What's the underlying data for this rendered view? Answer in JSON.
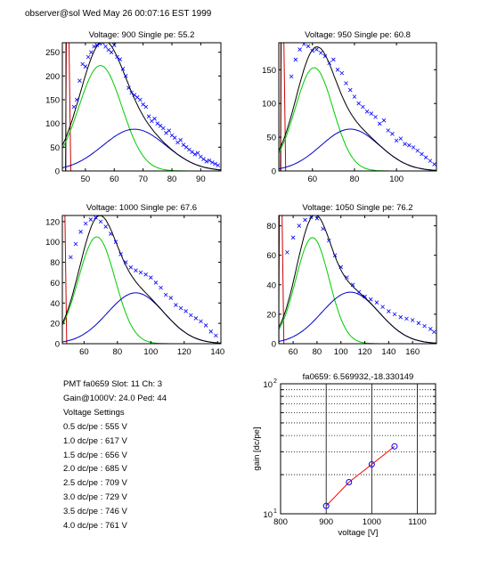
{
  "header": {
    "text": "observer@sol  Wed May 26 00:07:16 EST 1999"
  },
  "colors": {
    "data": "#0000ff",
    "fit_total": "#000000",
    "fit_single": "#00cc00",
    "fit_double": "#0000cc",
    "pedestal": "#cc0000",
    "gain_line": "#ff0000",
    "gain_marker": "#0000ff"
  },
  "info": {
    "pmt_line": "PMT fa0659 Slot: 11 Ch: 3",
    "gain_line": "Gain@1000V: 24.0 Ped: 44",
    "settings_title": "Voltage Settings",
    "settings": [
      "0.5 dc/pe : 555 V",
      "1.0 dc/pe : 617 V",
      "1.5 dc/pe : 656 V",
      "2.0 dc/pe : 685 V",
      "2.5 dc/pe : 709 V",
      "3.0 dc/pe : 729 V",
      "3.5 dc/pe : 746 V",
      "4.0 dc/pe : 761 V"
    ]
  },
  "chart_data": [
    {
      "type": "scatter",
      "title": "Voltage: 900 Single pe: 55.2",
      "xlim": [
        42,
        97
      ],
      "ylim": [
        0,
        270
      ],
      "xticks": [
        50,
        60,
        70,
        80,
        90
      ],
      "yticks": [
        0,
        50,
        100,
        150,
        200,
        250
      ],
      "pedestal": 44,
      "single_pe": 55.2,
      "fit_single": {
        "amp": 222,
        "mean": 55.2,
        "sigma": 7.5
      },
      "fit_double": {
        "amp": 88,
        "mean": 67,
        "sigma": 11
      },
      "x": [
        46,
        47,
        48,
        49,
        50,
        51,
        52,
        53,
        54,
        55,
        56,
        57,
        58,
        59,
        60,
        61,
        62,
        63,
        64,
        65,
        66,
        67,
        68,
        69,
        70,
        71,
        72,
        73,
        74,
        75,
        76,
        77,
        78,
        79,
        80,
        81,
        82,
        83,
        84,
        85,
        86,
        87,
        88,
        89,
        90,
        91,
        92,
        93,
        94,
        95,
        96
      ],
      "y": [
        135,
        150,
        190,
        225,
        220,
        240,
        250,
        262,
        265,
        268,
        270,
        262,
        255,
        250,
        265,
        240,
        235,
        215,
        200,
        175,
        165,
        160,
        155,
        150,
        140,
        135,
        115,
        105,
        110,
        100,
        95,
        90,
        80,
        85,
        75,
        70,
        60,
        65,
        55,
        50,
        45,
        40,
        35,
        38,
        30,
        25,
        20,
        22,
        18,
        15,
        12
      ]
    },
    {
      "type": "scatter",
      "title": "Voltage: 950 Single pe: 60.8",
      "xlim": [
        44,
        119
      ],
      "ylim": [
        0,
        190
      ],
      "xticks": [
        60,
        80,
        100
      ],
      "yticks": [
        0,
        50,
        100,
        150
      ],
      "pedestal": 46,
      "single_pe": 60.8,
      "fit_single": {
        "amp": 153,
        "mean": 60.8,
        "sigma": 9
      },
      "fit_double": {
        "amp": 62,
        "mean": 78,
        "sigma": 14
      },
      "x": [
        50,
        52,
        54,
        56,
        58,
        60,
        62,
        64,
        66,
        68,
        70,
        72,
        74,
        76,
        78,
        80,
        82,
        84,
        86,
        88,
        90,
        92,
        94,
        96,
        98,
        100,
        102,
        104,
        106,
        108,
        110,
        112,
        114,
        116,
        118
      ],
      "y": [
        140,
        165,
        180,
        188,
        185,
        178,
        180,
        175,
        170,
        160,
        165,
        150,
        145,
        130,
        120,
        110,
        100,
        95,
        88,
        85,
        80,
        70,
        75,
        60,
        55,
        45,
        48,
        40,
        38,
        35,
        30,
        25,
        20,
        15,
        10
      ]
    },
    {
      "type": "scatter",
      "title": "Voltage: 1000 Single pe: 67.6",
      "xlim": [
        47,
        142
      ],
      "ylim": [
        0,
        126
      ],
      "xticks": [
        60,
        80,
        100,
        120,
        140
      ],
      "yticks": [
        0,
        20,
        40,
        60,
        80,
        100,
        120
      ],
      "pedestal": 48,
      "single_pe": 67.6,
      "fit_single": {
        "amp": 105,
        "mean": 67.6,
        "sigma": 11
      },
      "fit_double": {
        "amp": 50,
        "mean": 91,
        "sigma": 17
      },
      "x": [
        52,
        55,
        58,
        61,
        64,
        67,
        70,
        73,
        76,
        79,
        82,
        85,
        88,
        91,
        94,
        97,
        100,
        103,
        106,
        109,
        112,
        115,
        118,
        121,
        124,
        127,
        130,
        133,
        136,
        139
      ],
      "y": [
        85,
        98,
        110,
        118,
        122,
        124,
        120,
        115,
        108,
        100,
        88,
        80,
        75,
        72,
        70,
        68,
        65,
        60,
        55,
        48,
        45,
        38,
        35,
        32,
        28,
        25,
        22,
        18,
        12,
        8
      ]
    },
    {
      "type": "scatter",
      "title": "Voltage: 1050 Single pe: 76.2",
      "xlim": [
        48,
        180
      ],
      "ylim": [
        0,
        87
      ],
      "xticks": [
        60,
        80,
        100,
        120,
        140,
        160
      ],
      "yticks": [
        0,
        20,
        40,
        60,
        80
      ],
      "pedestal": 50,
      "single_pe": 76.2,
      "fit_single": {
        "amp": 72,
        "mean": 76.2,
        "sigma": 14
      },
      "fit_double": {
        "amp": 35,
        "mean": 108,
        "sigma": 24
      },
      "x": [
        55,
        60,
        65,
        70,
        75,
        80,
        85,
        90,
        95,
        100,
        105,
        110,
        115,
        120,
        125,
        130,
        135,
        140,
        145,
        150,
        155,
        160,
        165,
        170,
        175,
        178
      ],
      "y": [
        62,
        72,
        80,
        84,
        86,
        85,
        78,
        70,
        60,
        52,
        45,
        40,
        35,
        32,
        30,
        28,
        25,
        22,
        20,
        18,
        17,
        16,
        14,
        12,
        10,
        8
      ]
    },
    {
      "type": "line",
      "title": "fa0659: 6.569932,-18.330149",
      "xlabel": "voltage [V]",
      "ylabel": "gain [dc/pe]",
      "xlim": [
        800,
        1140
      ],
      "ylim": [
        10,
        100
      ],
      "yscale": "log",
      "xticks": [
        800,
        900,
        1000,
        1100
      ],
      "ytick_labels": [
        "10",
        "10"
      ],
      "ytick_exponents": [
        "1",
        "2"
      ],
      "x": [
        900,
        950,
        1000,
        1050
      ],
      "y": [
        11.5,
        17.5,
        24.0,
        33.0
      ]
    }
  ]
}
